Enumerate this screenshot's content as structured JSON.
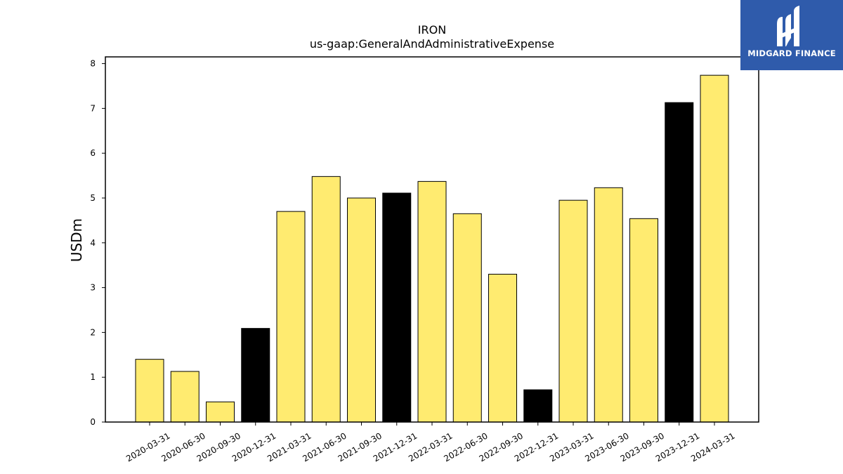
{
  "logo": {
    "text": "MIDGARD FINANCE",
    "icon": "midgard-logo-icon",
    "color": "#2f5bab"
  },
  "colors": {
    "bar_default": "#ffeb70",
    "bar_highlight": "#000000",
    "edge": "#000000"
  },
  "chart_data": {
    "type": "bar",
    "title": "IRON",
    "subtitle": "us-gaap:GeneralAndAdministrativeExpense",
    "xlabel": "",
    "ylabel": "USDm",
    "ylim": [
      0,
      8.15
    ],
    "yticks": [
      "0",
      "1",
      "2",
      "3",
      "4",
      "5",
      "6",
      "7",
      "8"
    ],
    "grid": false,
    "categories": [
      "2020-03-31",
      "2020-06-30",
      "2020-09-30",
      "2020-12-31",
      "2021-03-31",
      "2021-06-30",
      "2021-09-30",
      "2021-12-31",
      "2022-03-31",
      "2022-06-30",
      "2022-09-30",
      "2022-12-31",
      "2023-03-31",
      "2023-06-30",
      "2023-09-30",
      "2023-12-31",
      "2024-03-31"
    ],
    "values": [
      1.4,
      1.13,
      0.45,
      2.09,
      4.7,
      5.48,
      5.0,
      5.11,
      5.37,
      4.65,
      3.3,
      0.72,
      4.95,
      5.23,
      4.54,
      7.13,
      7.74
    ],
    "highlight": [
      false,
      false,
      false,
      true,
      false,
      false,
      false,
      true,
      false,
      false,
      false,
      true,
      false,
      false,
      false,
      true,
      false
    ]
  }
}
